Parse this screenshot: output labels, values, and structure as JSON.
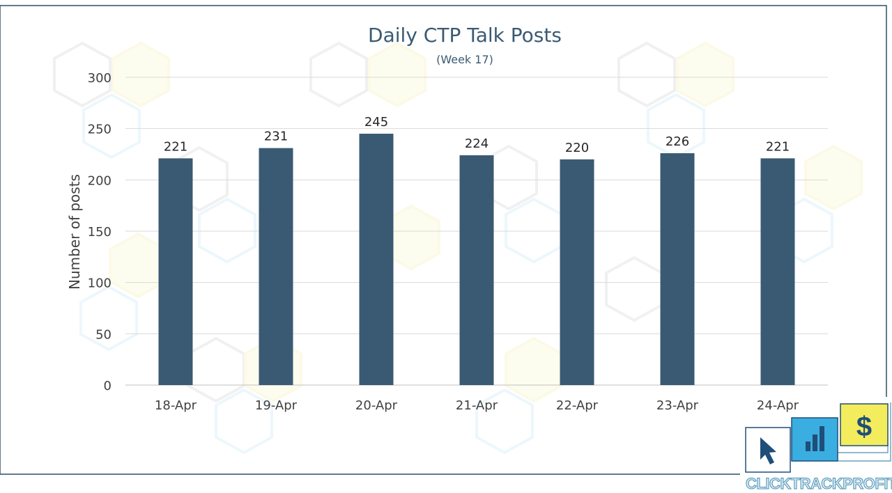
{
  "chart_data": {
    "type": "bar",
    "title": "Daily CTP Talk Posts",
    "subtitle": "(Week 17)",
    "xlabel": "",
    "ylabel": "Number of posts",
    "categories": [
      "18-Apr",
      "19-Apr",
      "20-Apr",
      "21-Apr",
      "22-Apr",
      "23-Apr",
      "24-Apr"
    ],
    "values": [
      221,
      231,
      245,
      224,
      220,
      226,
      221
    ],
    "data_labels": [
      "221",
      "231",
      "245",
      "224",
      "220",
      "226",
      "221"
    ],
    "y_ticks": [
      "0",
      "50",
      "100",
      "150",
      "200",
      "250",
      "300"
    ],
    "ylim": [
      0,
      300
    ],
    "grid": true,
    "legend": "none",
    "bar_color": "#3a5a73"
  },
  "logo": {
    "text_parts": [
      "CLICK",
      "TRACK",
      "PROFIT"
    ],
    "dollar_glyph": "$",
    "colors": {
      "blue": "#3aaee0",
      "yellow": "#f3ec5c",
      "navy": "#1f4e79",
      "outline": "#4a8fb0"
    }
  },
  "colors": {
    "frame": "#2f4f66",
    "title": "#3a5a73",
    "grid": "#d9d9d9",
    "axis_text": "#404040"
  }
}
